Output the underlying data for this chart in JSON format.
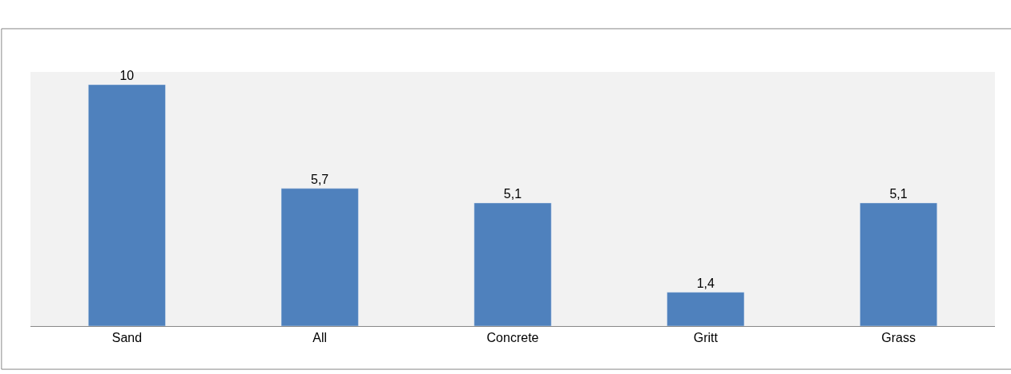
{
  "chart_data": {
    "type": "bar",
    "categories": [
      "Sand",
      "All",
      "Concrete",
      "Gritt",
      "Grass"
    ],
    "values": [
      10,
      5.7,
      5.1,
      1.4,
      5.1
    ],
    "value_labels": [
      "10",
      "5,7",
      "5,1",
      "1,4",
      "5,1"
    ],
    "color": "#4f81bd",
    "grid": false,
    "legend": false
  }
}
